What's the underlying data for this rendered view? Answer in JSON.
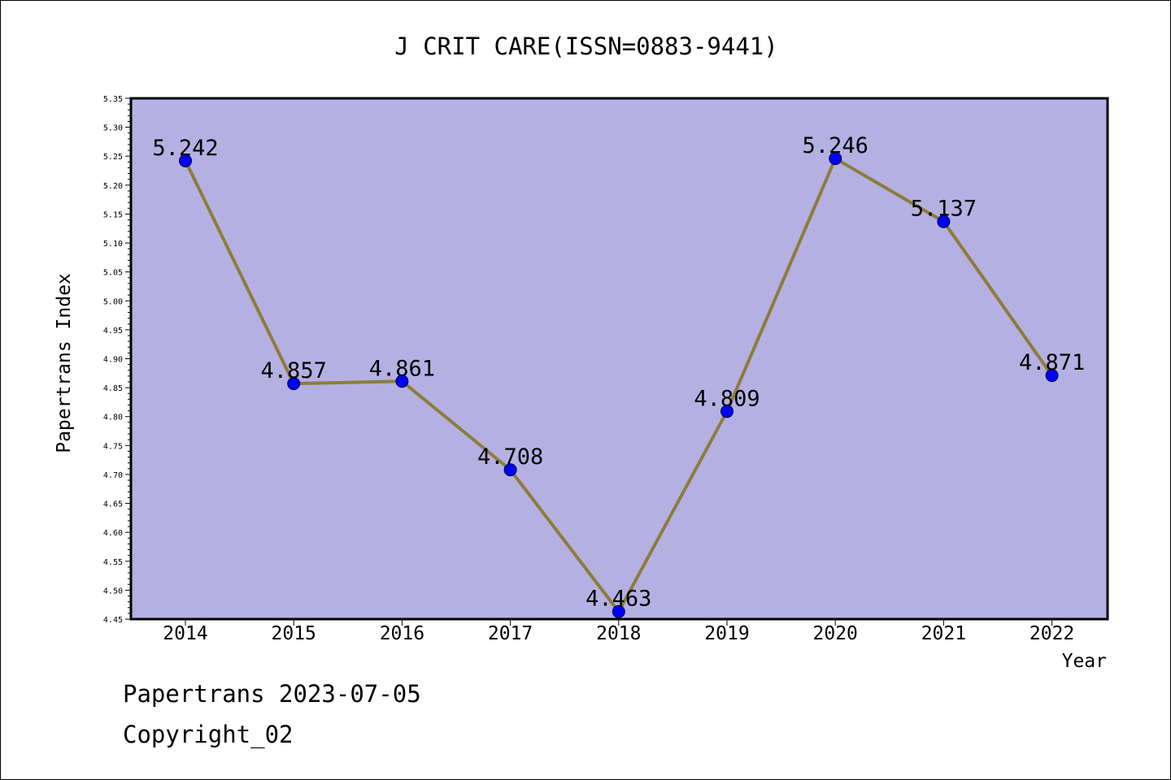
{
  "chart_data": {
    "type": "line",
    "title": "J CRIT CARE(ISSN=0883-9441)",
    "xlabel": "Year",
    "ylabel": "Papertrans Index",
    "categories": [
      "2014",
      "2015",
      "2016",
      "2017",
      "2018",
      "2019",
      "2020",
      "2021",
      "2022"
    ],
    "series": [
      {
        "values": [
          5.242,
          4.857,
          4.861,
          4.708,
          4.463,
          4.809,
          5.246,
          5.137,
          4.871
        ],
        "labels": [
          "5.242",
          "4.857",
          "4.861",
          "4.708",
          "4.463",
          "4.809",
          "5.246",
          "5.137",
          "4.871"
        ],
        "line_color": "#8b7d3a",
        "marker_color": "#0000ff"
      }
    ],
    "ylim": [
      4.45,
      5.35
    ],
    "yticks": [
      "4.45",
      "4.50",
      "4.55",
      "4.60",
      "4.65",
      "4.70",
      "4.75",
      "4.80",
      "4.85",
      "4.90",
      "4.95",
      "5.00",
      "5.05",
      "5.10",
      "5.15",
      "5.20",
      "5.25",
      "5.30",
      "5.35"
    ],
    "plot_background": "#b5b0e2",
    "grid": false,
    "legend": "none"
  },
  "footer": {
    "line1": "Papertrans 2023-07-05",
    "line2": "Copyright_02"
  }
}
